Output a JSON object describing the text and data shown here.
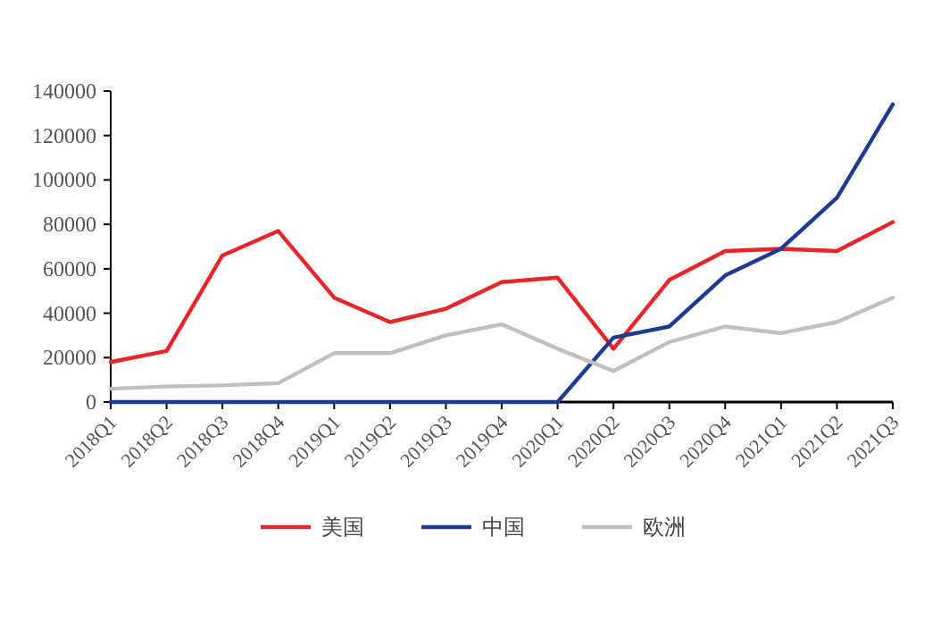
{
  "chart_data": {
    "type": "line",
    "categories": [
      "2018Q1",
      "2018Q2",
      "2018Q3",
      "2018Q4",
      "2019Q1",
      "2019Q2",
      "2019Q3",
      "2019Q4",
      "2020Q1",
      "2020Q2",
      "2020Q3",
      "2020Q4",
      "2021Q1",
      "2021Q2",
      "2021Q3"
    ],
    "series": [
      {
        "name": "美国",
        "color": "#e8262a",
        "values": [
          18000,
          23000,
          66000,
          77000,
          47000,
          36000,
          42000,
          54000,
          56000,
          24000,
          55000,
          68000,
          69000,
          68000,
          81000
        ]
      },
      {
        "name": "中国",
        "color": "#1f3a93",
        "values": [
          0,
          0,
          0,
          0,
          0,
          0,
          0,
          0,
          0,
          29000,
          34000,
          57000,
          69000,
          92000,
          134000
        ]
      },
      {
        "name": "欧洲",
        "color": "#c0c0c0",
        "values": [
          6000,
          7000,
          7500,
          8500,
          22000,
          22000,
          30000,
          35000,
          24000,
          14000,
          27000,
          34000,
          31000,
          36000,
          47000
        ]
      }
    ],
    "ylim": [
      0,
      140000
    ],
    "yticks": [
      0,
      20000,
      40000,
      60000,
      80000,
      100000,
      120000,
      140000
    ],
    "grid": false,
    "legend": "bottom"
  }
}
